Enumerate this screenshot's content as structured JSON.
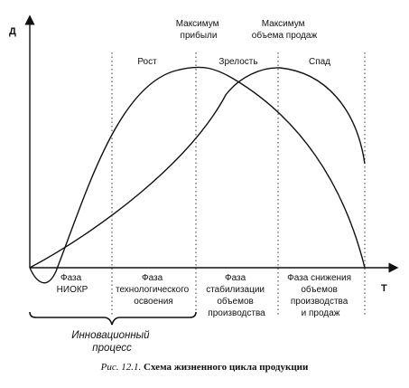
{
  "axes": {
    "y_label": "Д",
    "x_label": "T"
  },
  "top_labels": {
    "max_profit": [
      "Максимум",
      "прибыли"
    ],
    "max_sales": [
      "Максимум",
      "объема продаж"
    ]
  },
  "stages": [
    "Рост",
    "Зрелость",
    "Спад"
  ],
  "phases": [
    [
      "Фаза",
      "НИОКР"
    ],
    [
      "Фаза",
      "технологического",
      "освоения"
    ],
    [
      "Фаза",
      "стабилизации",
      "объемов",
      "производства"
    ],
    [
      "Фаза снижения",
      "объемов",
      "производства",
      "и продаж"
    ]
  ],
  "process_label": [
    "Инновационный",
    "процесс"
  ],
  "caption": {
    "number": "Рис. 12.1.",
    "title": "Схема жизненного цикла продукции"
  }
}
